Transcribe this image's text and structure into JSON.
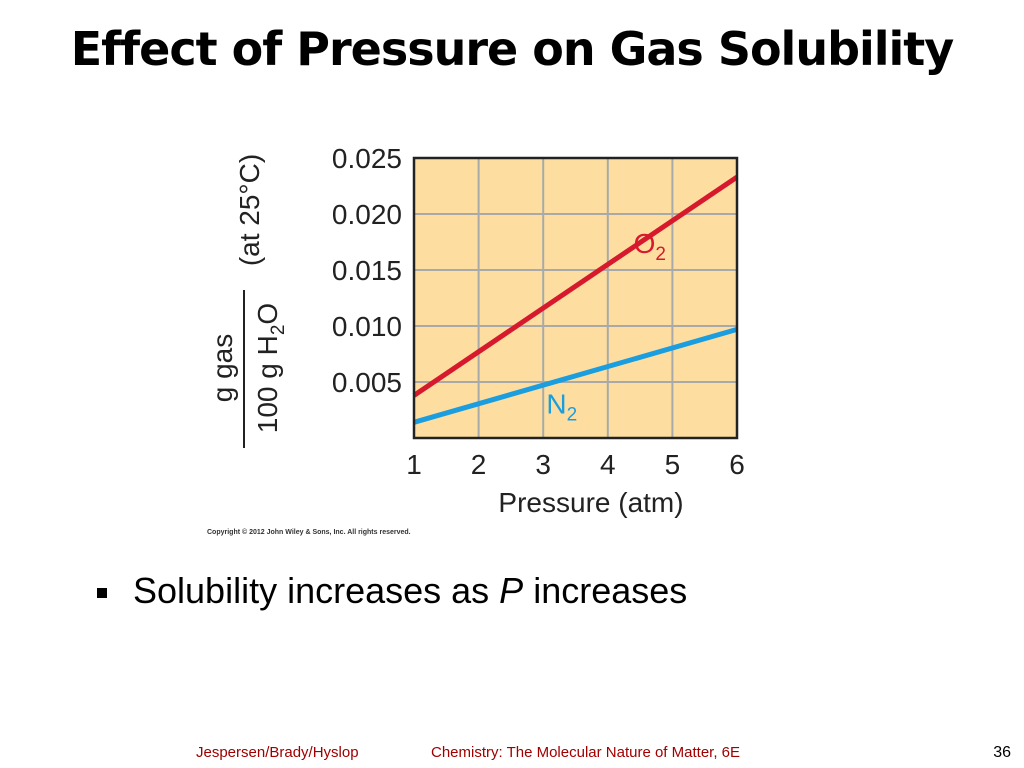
{
  "slide": {
    "title": "Effect of Pressure on Gas Solubility",
    "bullet_text_before": "Solubility increases as ",
    "bullet_text_italic": "P",
    "bullet_text_after": " increases",
    "footer_authors": "Jespersen/Brady/Hyslop",
    "footer_book": "Chemistry: The Molecular Nature of Matter, 6E",
    "page_number": "36"
  },
  "chart_data": {
    "type": "line",
    "xlabel": "Pressure (atm)",
    "ylabel_numerator": "g gas",
    "ylabel_denominator": "100 g H",
    "ylabel_denominator_sub": "2",
    "ylabel_denominator_end": "O",
    "ylabel_condition": "(at 25°C)",
    "x_ticks": [
      "1",
      "2",
      "3",
      "4",
      "5",
      "6"
    ],
    "y_ticks": [
      "0.005",
      "0.010",
      "0.015",
      "0.020",
      "0.025"
    ],
    "xlim": [
      1,
      6
    ],
    "ylim": [
      0,
      0.025
    ],
    "grid": true,
    "copyright": "Copyright © 2012 John Wiley & Sons, Inc. All rights reserved.",
    "series": [
      {
        "name": "O",
        "name_sub": "2",
        "color": "#d7192d",
        "x": [
          1,
          6
        ],
        "y": [
          0.0038,
          0.0233
        ]
      },
      {
        "name": "N",
        "name_sub": "2",
        "color": "#1a9ee0",
        "x": [
          1,
          6
        ],
        "y": [
          0.0014,
          0.0097
        ]
      }
    ],
    "colors": {
      "plot_background": "#fddea0",
      "grid": "#a9a9a9",
      "frame": "#222222"
    }
  }
}
